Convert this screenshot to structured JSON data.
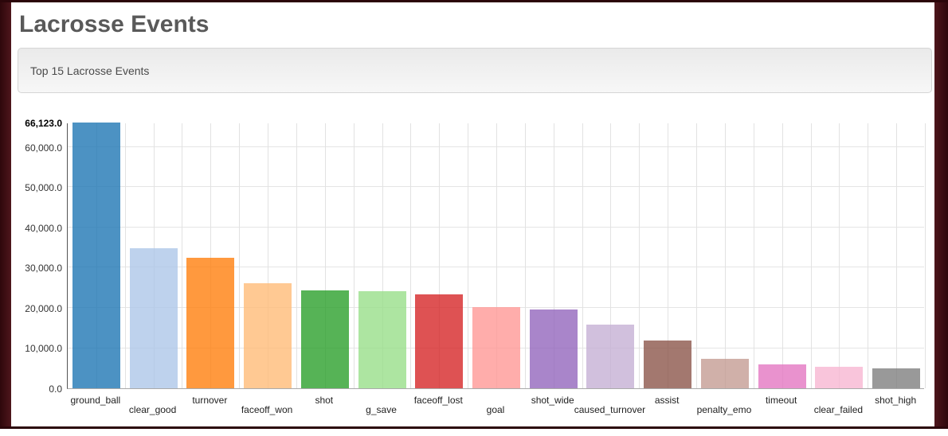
{
  "page": {
    "title": "Lacrosse Events",
    "panel_heading": "Top 15 Lacrosse Events"
  },
  "theme": {
    "frame_color_dark": "#2b060a",
    "frame_color_mid": "#4e161c",
    "title_color": "#595959",
    "axis_line_color": "#555555",
    "grid_color": "#e3e3e3",
    "max_tick_color": "#000000"
  },
  "chart_data": {
    "type": "bar",
    "title": "Top 15 Lacrosse Events",
    "xlabel": "",
    "ylabel": "",
    "ylim": [
      0,
      66123
    ],
    "grid": true,
    "legend": "none",
    "bar_opacity": 0.8,
    "categories": [
      "ground_ball",
      "clear_good",
      "turnover",
      "faceoff_won",
      "shot",
      "g_save",
      "faceoff_lost",
      "goal",
      "shot_wide",
      "caused_turnover",
      "assist",
      "penalty_emo",
      "timeout",
      "clear_failed",
      "shot_high"
    ],
    "values": [
      66123,
      34900,
      32400,
      26100,
      24300,
      24200,
      23300,
      20100,
      19700,
      15800,
      11900,
      7400,
      6000,
      5400,
      5000
    ],
    "bar_colors": [
      "#1f77b4",
      "#aec7e8",
      "#ff7f0e",
      "#ffbb78",
      "#2ca02c",
      "#98df8a",
      "#d62728",
      "#ff9896",
      "#9467bd",
      "#c5b0d5",
      "#8c564b",
      "#c49c94",
      "#e377c2",
      "#f7b6d2",
      "#7f7f7f"
    ],
    "y_ticks": [
      {
        "value": 66123,
        "label": "66,123.0",
        "bold": true
      },
      {
        "value": 60000,
        "label": "60,000.0",
        "bold": false
      },
      {
        "value": 50000,
        "label": "50,000.0",
        "bold": false
      },
      {
        "value": 40000,
        "label": "40,000.0",
        "bold": false
      },
      {
        "value": 30000,
        "label": "30,000.0",
        "bold": false
      },
      {
        "value": 20000,
        "label": "20,000.0",
        "bold": false
      },
      {
        "value": 10000,
        "label": "10,000.0",
        "bold": false
      },
      {
        "value": 0,
        "label": "0.0",
        "bold": false
      }
    ]
  }
}
